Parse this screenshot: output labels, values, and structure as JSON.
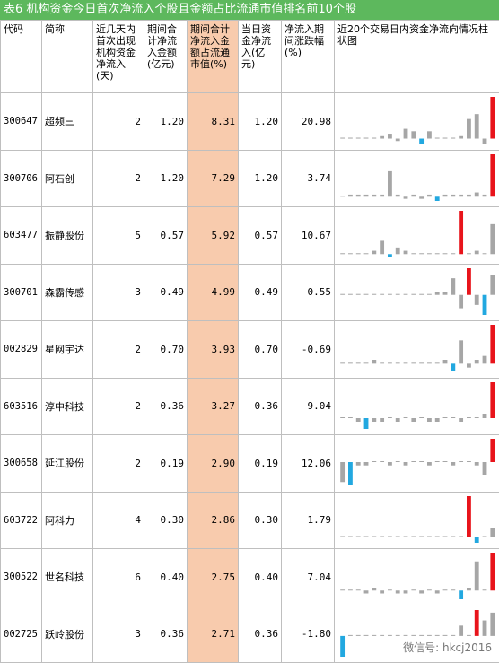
{
  "title": "表6  机构资金今日首次净流入个股且金额占比流通市值排名前10个股",
  "table": {
    "headers": [
      "代码",
      "简称",
      "近几天内首次出现机构资金净流入(天)",
      "期间合计净流入金额(亿元)",
      "期间合计净流入金额占流通市值(%)",
      "当日资金净流入(亿元)",
      "净流入期间涨跌幅(%)",
      "近20个交易日内资金净流向情况柱状图"
    ],
    "highlight_column": 4,
    "highlight_color": "#f8cbad",
    "rows": [
      [
        "300647",
        "超频三",
        2,
        "1.20",
        "8.31",
        "1.20",
        "20.98"
      ],
      [
        "300706",
        "阿石创",
        2,
        "1.20",
        "7.29",
        "1.20",
        "3.74"
      ],
      [
        "603477",
        "振静股份",
        5,
        "0.57",
        "5.92",
        "0.57",
        "10.67"
      ],
      [
        "300701",
        "森霸传感",
        3,
        "0.49",
        "4.99",
        "0.49",
        "0.55"
      ],
      [
        "002829",
        "星网宇达",
        2,
        "0.70",
        "3.93",
        "0.70",
        "-0.69"
      ],
      [
        "603516",
        "淳中科技",
        2,
        "0.36",
        "3.27",
        "0.36",
        "9.04"
      ],
      [
        "300658",
        "延江股份",
        2,
        "0.19",
        "2.90",
        "0.19",
        "12.06"
      ],
      [
        "603722",
        "阿科力",
        4,
        "0.30",
        "2.86",
        "0.30",
        "1.79"
      ],
      [
        "300522",
        "世名科技",
        6,
        "0.40",
        "2.75",
        "0.40",
        "7.04"
      ],
      [
        "002725",
        "跃岭股份",
        3,
        "0.36",
        "2.71",
        "0.36",
        "-1.80"
      ]
    ],
    "sparkline_colors": {
      "max": "#e8141b",
      "min": "#22a8e0",
      "other": "#a6a6a6"
    },
    "sparklines": [
      [
        0,
        0,
        0,
        0,
        0,
        1,
        2,
        -1,
        4,
        3,
        -2,
        3,
        0,
        0,
        0,
        1,
        8,
        10,
        -2,
        17
      ],
      [
        0,
        1,
        1,
        1,
        1,
        1,
        12,
        1,
        -1,
        1,
        -1,
        1,
        -2,
        1,
        1,
        1,
        1,
        2,
        1,
        20
      ],
      [
        0,
        0,
        0,
        0,
        1,
        4,
        -1,
        2,
        1,
        0,
        0,
        0,
        0,
        0,
        0,
        13,
        0,
        1,
        0,
        9
      ],
      [
        0,
        0,
        0,
        0,
        0,
        0,
        0,
        0,
        0,
        0,
        0,
        0,
        1,
        1,
        5,
        -4,
        8,
        -3,
        -6,
        6
      ],
      [
        0,
        0,
        0,
        0,
        1,
        0,
        0,
        0,
        0,
        0,
        0,
        0,
        0,
        1,
        -2,
        6,
        -1,
        1,
        2,
        10
      ],
      [
        0,
        0,
        -1,
        -3,
        -1,
        -1,
        0,
        -1,
        0,
        -1,
        0,
        -1,
        -1,
        0,
        0,
        -1,
        0,
        0,
        1,
        10
      ],
      [
        -6,
        -7,
        -1,
        -1,
        0,
        0,
        -1,
        0,
        -1,
        0,
        0,
        -1,
        0,
        0,
        -1,
        0,
        0,
        -1,
        -4,
        7
      ],
      [
        0,
        0,
        0,
        0,
        0,
        0,
        0,
        0,
        0,
        0,
        0,
        0,
        0,
        0,
        0,
        0,
        14,
        -2,
        0,
        3
      ],
      [
        0,
        0,
        0,
        -1,
        1,
        -1,
        0,
        -1,
        -1,
        0,
        -1,
        0,
        -1,
        0,
        0,
        -3,
        1,
        10,
        0,
        13
      ],
      [
        -8,
        0,
        0,
        0,
        0,
        0,
        0,
        0,
        0,
        0,
        0,
        0,
        0,
        0,
        0,
        4,
        0,
        10,
        6,
        9
      ]
    ]
  },
  "watermark": "微信号: hkcj2016"
}
